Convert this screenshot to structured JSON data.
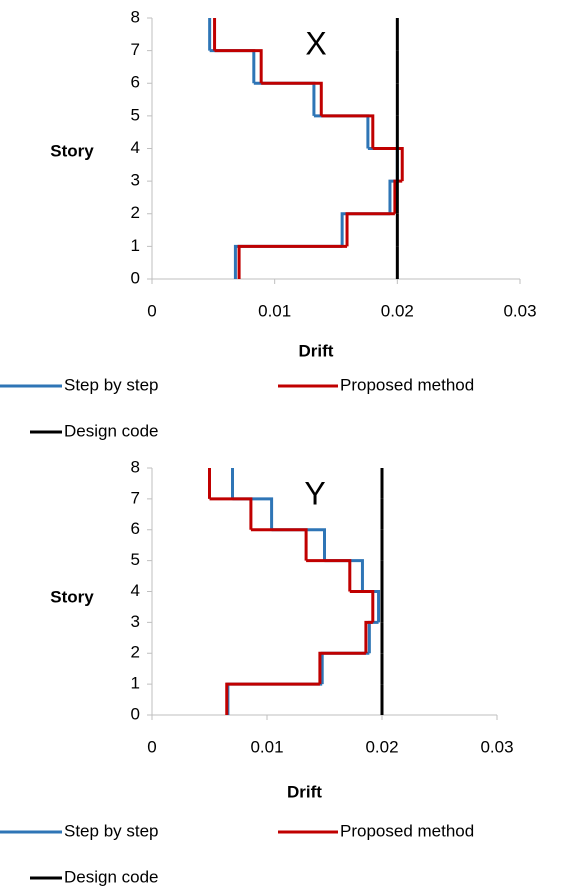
{
  "chart_data": [
    {
      "type": "line",
      "step": "post",
      "annotation": "X",
      "xlabel": "Drift",
      "ylabel": "Story",
      "y": [
        0,
        1,
        2,
        3,
        4,
        5,
        6,
        7
      ],
      "series": [
        {
          "name": "Step by step",
          "color": "#2e75b6",
          "values": [
            0.0068,
            0.0155,
            0.0194,
            0.02,
            0.0176,
            0.0132,
            0.0083,
            0.0047
          ]
        },
        {
          "name": "Proposed method",
          "color": "#c00000",
          "values": [
            0.0071,
            0.0159,
            0.0198,
            0.0204,
            0.018,
            0.0138,
            0.0089,
            0.0051
          ]
        },
        {
          "name": "Design code",
          "color": "#000000",
          "values": [
            0.02,
            0.02,
            0.02,
            0.02,
            0.02,
            0.02,
            0.02,
            0.02
          ]
        }
      ],
      "xlim": [
        0,
        0.03
      ],
      "ylim": [
        0,
        8
      ],
      "xticks": [
        0,
        0.01,
        0.02,
        0.03
      ],
      "yticks": [
        0,
        1,
        2,
        3,
        4,
        5,
        6,
        7,
        8
      ]
    },
    {
      "type": "line",
      "step": "post",
      "annotation": "Y",
      "xlabel": "Drift",
      "ylabel": "Story",
      "y": [
        0,
        1,
        2,
        3,
        4,
        5,
        6,
        7
      ],
      "series": [
        {
          "name": "Step by step",
          "color": "#2e75b6",
          "values": [
            0.0066,
            0.0148,
            0.0189,
            0.0197,
            0.0183,
            0.015,
            0.0104,
            0.007
          ]
        },
        {
          "name": "Proposed method",
          "color": "#c00000",
          "values": [
            0.0065,
            0.0146,
            0.0186,
            0.0192,
            0.0172,
            0.0134,
            0.0086,
            0.005
          ]
        },
        {
          "name": "Design code",
          "color": "#000000",
          "values": [
            0.02,
            0.02,
            0.02,
            0.02,
            0.02,
            0.02,
            0.02,
            0.02
          ]
        }
      ],
      "xlim": [
        0,
        0.03
      ],
      "ylim": [
        0,
        8
      ],
      "xticks": [
        0,
        0.01,
        0.02,
        0.03
      ],
      "yticks": [
        0,
        1,
        2,
        3,
        4,
        5,
        6,
        7,
        8
      ]
    }
  ]
}
